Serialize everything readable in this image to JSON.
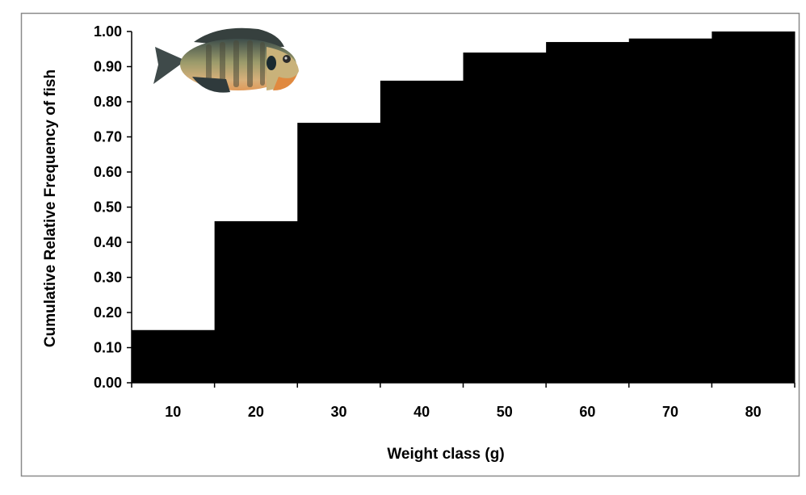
{
  "chart_data": {
    "type": "bar",
    "title": "",
    "xlabel": "Weight class (g)",
    "ylabel": "Cumulative Relative Frequency of fish",
    "categories": [
      "10",
      "20",
      "30",
      "40",
      "50",
      "60",
      "70",
      "80"
    ],
    "values": [
      0.15,
      0.46,
      0.74,
      0.86,
      0.94,
      0.97,
      0.98,
      1.0
    ],
    "ylim": [
      0,
      1.0
    ],
    "yticks": [
      "0.00",
      "0.10",
      "0.20",
      "0.30",
      "0.40",
      "0.50",
      "0.60",
      "0.70",
      "0.80",
      "0.90",
      "1.00"
    ],
    "bar_color": "#000000",
    "grid": false,
    "legend": "none",
    "image": "bluegill-fish"
  }
}
